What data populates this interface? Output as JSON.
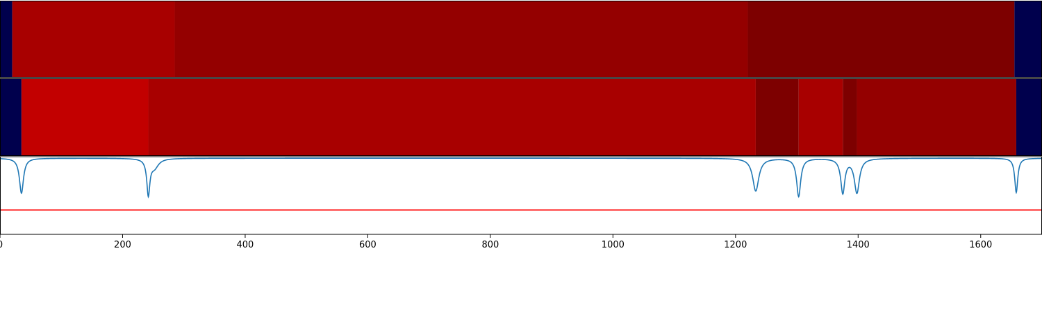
{
  "chart_data": [
    {
      "type": "heatmap",
      "panel": "band-1",
      "segments": [
        {
          "x_start": 0,
          "x_end": 20,
          "color": "#00004d"
        },
        {
          "x_start": 20,
          "x_end": 285,
          "color": "#a80000"
        },
        {
          "x_start": 285,
          "x_end": 1220,
          "color": "#940000"
        },
        {
          "x_start": 1220,
          "x_end": 1655,
          "color": "#7d0000"
        },
        {
          "x_start": 1655,
          "x_end": 1700,
          "color": "#00004d"
        }
      ]
    },
    {
      "type": "heatmap",
      "panel": "band-2",
      "segments": [
        {
          "x_start": 0,
          "x_end": 35,
          "color": "#00004d"
        },
        {
          "x_start": 35,
          "x_end": 242,
          "color": "#c20000"
        },
        {
          "x_start": 242,
          "x_end": 1233,
          "color": "#a80000"
        },
        {
          "x_start": 1233,
          "x_end": 1303,
          "color": "#7d0000"
        },
        {
          "x_start": 1303,
          "x_end": 1375,
          "color": "#a80000"
        },
        {
          "x_start": 1375,
          "x_end": 1398,
          "color": "#7d0000"
        },
        {
          "x_start": 1398,
          "x_end": 1658,
          "color": "#940000"
        },
        {
          "x_start": 1658,
          "x_end": 1700,
          "color": "#00004d"
        }
      ]
    },
    {
      "type": "line",
      "panel": "signal",
      "xlim": [
        0,
        1700
      ],
      "ylim": [
        -1.0,
        0.02
      ],
      "x_ticks": [
        0,
        200,
        400,
        600,
        800,
        1000,
        1200,
        1400,
        1600
      ],
      "x_tick_labels": [
        "0",
        "200",
        "400",
        "600",
        "800",
        "1000",
        "1200",
        "1400",
        "1600"
      ],
      "series": [
        {
          "color": "#1f77b4",
          "dips": [
            {
              "center": 35,
              "depth": 0.46,
              "width": 4
            },
            {
              "center": 242,
              "depth": 0.46,
              "width": 3
            },
            {
              "center": 252,
              "depth": 0.12,
              "width": 8
            },
            {
              "center": 1233,
              "depth": 0.43,
              "width": 6
            },
            {
              "center": 1303,
              "depth": 0.5,
              "width": 4
            },
            {
              "center": 1375,
              "depth": 0.45,
              "width": 4
            },
            {
              "center": 1398,
              "depth": 0.45,
              "width": 5
            },
            {
              "center": 1658,
              "depth": 0.45,
              "width": 3
            }
          ]
        }
      ],
      "threshold": {
        "y": -0.68,
        "color": "#ff0000"
      },
      "grid": false
    }
  ]
}
